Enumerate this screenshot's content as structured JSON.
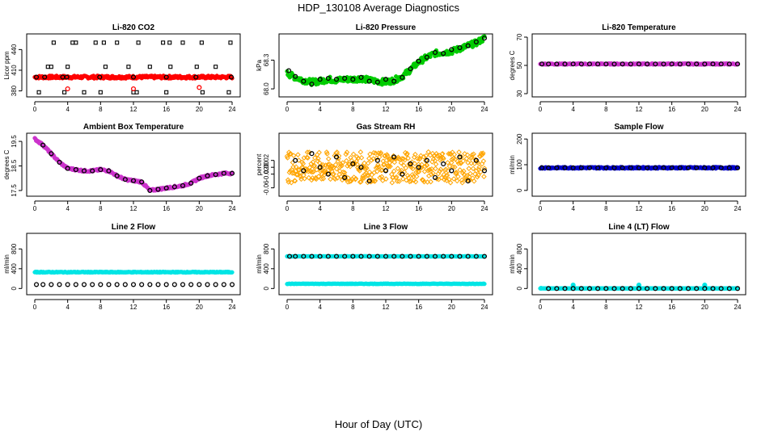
{
  "figure": {
    "title": "HDP_130108  Average Diagnostics",
    "xlabel": "Hour of Day (UTC)"
  },
  "chart_data": [
    {
      "type": "scatter",
      "title": "Li-820 CO2",
      "ylabel": "Licor ppm",
      "xlim": [
        0,
        24
      ],
      "ylim": [
        376,
        458
      ],
      "yticks": [
        380,
        410,
        440
      ],
      "xticks": [
        0,
        4,
        8,
        12,
        16,
        20,
        24
      ],
      "series": [
        {
          "color": "#ff0000",
          "fill": true,
          "style": "band",
          "x": [
            0,
            24
          ],
          "y": [
            400,
            400
          ],
          "jitter": 2
        },
        {
          "color": "#000000",
          "fill": false,
          "shape": "square",
          "x": [
            0.5,
            2,
            2.3,
            3.6,
            5,
            6,
            7.4,
            8,
            8.6,
            10,
            11.4,
            12,
            12.6,
            14,
            15.6,
            16,
            16.5,
            18,
            19.7,
            20.3,
            22,
            23.6
          ],
          "y": [
            378,
            415,
            450,
            378,
            450,
            378,
            450,
            378,
            415,
            450,
            415,
            378,
            450,
            415,
            450,
            378,
            415,
            450,
            415,
            450,
            415,
            378
          ]
        },
        {
          "color": "#000000",
          "fill": false,
          "shape": "square",
          "x": [
            1.6,
            4,
            4.6,
            8.4,
            12.4,
            16.4,
            20.4,
            23.8
          ],
          "y": [
            415,
            415,
            450,
            450,
            378,
            450,
            378,
            450
          ]
        },
        {
          "color": "#000000",
          "fill": false,
          "shape": "circle",
          "x": [
            0.2,
            1.2,
            3.4,
            3.9,
            7.9,
            12,
            16,
            19.6,
            23.9
          ],
          "y": [
            400,
            400,
            400,
            400,
            400,
            400,
            400,
            400,
            400
          ]
        },
        {
          "color": "#ff0000",
          "fill": false,
          "shape": "circle",
          "x": [
            4,
            12,
            20
          ],
          "y": [
            383,
            383,
            385
          ]
        }
      ]
    },
    {
      "type": "scatter",
      "title": "Li-820 Pressure",
      "ylabel": "kPa",
      "xlim": [
        0,
        24
      ],
      "ylim": [
        67.95,
        68.54
      ],
      "yticks": [
        68.0,
        68.3
      ],
      "ytick_labels": [
        "68.0",
        "68.3"
      ],
      "xticks": [
        0,
        4,
        8,
        12,
        16,
        20,
        24
      ],
      "series": [
        {
          "color": "#00cc00",
          "fill": true,
          "style": "band",
          "x": [
            0,
            1,
            2,
            3,
            4,
            5,
            6,
            7,
            8,
            9,
            10,
            11,
            12,
            13,
            14,
            15,
            16,
            17,
            18,
            19,
            20,
            21,
            22,
            23,
            24
          ],
          "y": [
            68.16,
            68.12,
            68.09,
            68.07,
            68.08,
            68.1,
            68.09,
            68.1,
            68.1,
            68.11,
            68.09,
            68.08,
            68.07,
            68.09,
            68.13,
            68.2,
            68.28,
            68.33,
            68.37,
            68.38,
            68.39,
            68.42,
            68.45,
            68.48,
            68.53
          ],
          "jitter": 0.03
        },
        {
          "color": "#000000",
          "fill": false,
          "shape": "circle",
          "x": [
            0.2,
            1,
            2,
            3,
            4,
            5,
            6,
            7,
            8,
            9,
            10,
            11,
            12,
            13,
            14,
            15,
            16,
            17,
            18,
            19,
            20,
            21,
            22,
            23,
            24
          ],
          "y": [
            68.19,
            68.13,
            68.08,
            68.05,
            68.1,
            68.11,
            68.1,
            68.11,
            68.1,
            68.12,
            68.08,
            68.07,
            68.1,
            68.08,
            68.12,
            68.21,
            68.29,
            68.33,
            68.38,
            68.37,
            68.41,
            68.43,
            68.45,
            68.49,
            68.53
          ]
        }
      ]
    },
    {
      "type": "scatter",
      "title": "Li-820 Temperature",
      "ylabel": "degrees C",
      "xlim": [
        0,
        24
      ],
      "ylim": [
        30,
        70
      ],
      "yticks": [
        30,
        50,
        70
      ],
      "xticks": [
        0,
        4,
        8,
        12,
        16,
        20,
        24
      ],
      "series": [
        {
          "color": "#cc33cc",
          "fill": true,
          "style": "band",
          "x": [
            0,
            24
          ],
          "y": [
            51,
            51
          ],
          "jitter": 0.4
        },
        {
          "color": "#000000",
          "fill": false,
          "shape": "circle",
          "x": [
            0.2,
            1,
            2,
            3,
            4,
            5,
            6,
            7,
            8,
            9,
            10,
            11,
            12,
            13,
            14,
            15,
            16,
            17,
            18,
            19,
            20,
            21,
            22,
            23,
            24
          ],
          "y": [
            51,
            51,
            51,
            51,
            51,
            51,
            51,
            51,
            51,
            51,
            51,
            51,
            51,
            51,
            51,
            51,
            51,
            51,
            51,
            51,
            51,
            51,
            51,
            51,
            51
          ]
        }
      ]
    },
    {
      "type": "scatter",
      "title": "Ambient Box Temperature",
      "ylabel": "degrees C",
      "xlim": [
        0,
        24
      ],
      "ylim": [
        17.4,
        19.7
      ],
      "yticks": [
        17.5,
        18.5,
        19.5
      ],
      "ytick_labels": [
        "17.5",
        "18.5",
        "19.5"
      ],
      "xticks": [
        0,
        4,
        8,
        12,
        16,
        20,
        24
      ],
      "series": [
        {
          "color": "#cc33cc",
          "fill": true,
          "style": "band",
          "x": [
            0,
            1,
            2,
            3,
            4,
            5,
            6,
            7,
            8,
            9,
            10,
            11,
            12,
            13,
            14,
            15,
            16,
            17,
            18,
            19,
            20,
            21,
            22,
            23,
            24
          ],
          "y": [
            19.6,
            19.35,
            19.0,
            18.65,
            18.4,
            18.35,
            18.3,
            18.3,
            18.35,
            18.3,
            18.1,
            17.95,
            17.9,
            17.85,
            17.5,
            17.55,
            17.6,
            17.65,
            17.7,
            17.8,
            18.0,
            18.1,
            18.15,
            18.2,
            18.2
          ],
          "jitter": 0.04
        },
        {
          "color": "#000000",
          "fill": false,
          "shape": "circle",
          "x": [
            1,
            2,
            3,
            4,
            5,
            6,
            7,
            8,
            9,
            10,
            11,
            12,
            13,
            14,
            15,
            16,
            17,
            18,
            19,
            20,
            21,
            22,
            23,
            24
          ],
          "y": [
            19.35,
            19.0,
            18.65,
            18.4,
            18.35,
            18.3,
            18.3,
            18.35,
            18.3,
            18.1,
            17.95,
            17.9,
            17.85,
            17.5,
            17.55,
            17.6,
            17.65,
            17.7,
            17.8,
            18.0,
            18.1,
            18.15,
            18.2,
            18.2
          ]
        }
      ]
    },
    {
      "type": "scatter",
      "title": "Gas Stream RH",
      "ylabel": "percent",
      "xlim": [
        0,
        24
      ],
      "ylim": [
        -0.075,
        0.09
      ],
      "yticks": [
        -0.06,
        -0.02,
        0.02
      ],
      "extra_yticks": [
        0.0
      ],
      "ytick_labels": [
        "-0.06",
        "-0.02",
        "0.02",
        "0.00"
      ],
      "xticks": [
        0,
        4,
        8,
        12,
        16,
        20,
        24
      ],
      "series": [
        {
          "color": "#ffa500",
          "fill": false,
          "shape": "diamond",
          "style": "cloud",
          "x": [
            0,
            24
          ],
          "y": [
            0.0,
            0.0
          ],
          "jitter": 0.045
        },
        {
          "color": "#000000",
          "fill": false,
          "shape": "circle",
          "x": [
            1,
            2,
            3,
            4,
            5,
            6,
            7,
            8,
            9,
            10,
            11,
            12,
            13,
            14,
            15,
            16,
            17,
            18,
            19,
            20,
            21,
            22,
            23,
            24
          ],
          "y": [
            0.02,
            -0.01,
            0.04,
            0.0,
            -0.02,
            0.03,
            -0.03,
            0.01,
            0.0,
            -0.04,
            0.02,
            -0.01,
            0.03,
            -0.02,
            0.01,
            0.0,
            0.02,
            -0.03,
            0.01,
            -0.01,
            0.03,
            -0.04,
            0.02,
            -0.01
          ]
        }
      ]
    },
    {
      "type": "scatter",
      "title": "Sample Flow",
      "ylabel": "ml/min",
      "xlim": [
        0,
        24
      ],
      "ylim": [
        -10,
        210
      ],
      "yticks": [
        0,
        100,
        200
      ],
      "xticks": [
        0,
        4,
        8,
        12,
        16,
        20,
        24
      ],
      "series": [
        {
          "color": "#0000cc",
          "fill": true,
          "style": "band",
          "x": [
            0,
            24
          ],
          "y": [
            88,
            88
          ],
          "jitter": 3
        },
        {
          "color": "#000000",
          "fill": false,
          "shape": "circle",
          "x": [
            0.2,
            1,
            2,
            3,
            4,
            5,
            6,
            7,
            8,
            9,
            10,
            11,
            12,
            13,
            14,
            15,
            16,
            17,
            18,
            19,
            20,
            21,
            22,
            23,
            24
          ],
          "y": [
            88,
            88,
            88,
            88,
            88,
            88,
            88,
            88,
            88,
            88,
            88,
            88,
            88,
            88,
            88,
            88,
            88,
            88,
            88,
            88,
            88,
            88,
            88,
            88,
            88
          ]
        }
      ]
    },
    {
      "type": "scatter",
      "title": "Line 2 Flow",
      "ylabel": "ml/min",
      "xlim": [
        0,
        24
      ],
      "ylim": [
        -60,
        1050
      ],
      "yticks": [
        0,
        400,
        800
      ],
      "xticks": [
        0,
        4,
        8,
        12,
        16,
        20,
        24
      ],
      "series": [
        {
          "color": "#00e5e5",
          "fill": true,
          "style": "band",
          "x": [
            0,
            24
          ],
          "y": [
            330,
            330
          ],
          "jitter": 8
        },
        {
          "color": "#000000",
          "fill": false,
          "shape": "circle",
          "x": [
            0.2,
            1,
            2,
            3,
            4,
            5,
            6,
            7,
            8,
            9,
            10,
            11,
            12,
            13,
            14,
            15,
            16,
            17,
            18,
            19,
            20,
            21,
            22,
            23,
            24
          ],
          "y": [
            80,
            80,
            80,
            80,
            80,
            80,
            80,
            80,
            80,
            80,
            80,
            80,
            80,
            80,
            80,
            80,
            80,
            80,
            80,
            80,
            80,
            80,
            80,
            80,
            80
          ]
        }
      ]
    },
    {
      "type": "scatter",
      "title": "Line 3 Flow",
      "ylabel": "ml/min",
      "xlim": [
        0,
        24
      ],
      "ylim": [
        -60,
        1050
      ],
      "yticks": [
        0,
        400,
        800
      ],
      "xticks": [
        0,
        4,
        8,
        12,
        16,
        20,
        24
      ],
      "series": [
        {
          "color": "#00e5e5",
          "fill": true,
          "style": "band",
          "x": [
            0,
            24
          ],
          "y": [
            95,
            95
          ],
          "jitter": 4
        },
        {
          "color": "#00e5e5",
          "fill": true,
          "style": "band",
          "x": [
            0,
            24
          ],
          "y": [
            650,
            650
          ],
          "jitter": 2
        },
        {
          "color": "#000000",
          "fill": false,
          "shape": "circle",
          "x": [
            0.3,
            1,
            2,
            3,
            4,
            5,
            6,
            7,
            8,
            9,
            10,
            11,
            12,
            13,
            14,
            15,
            16,
            17,
            18,
            19,
            20,
            21,
            22,
            23,
            24
          ],
          "y": [
            650,
            650,
            650,
            650,
            650,
            650,
            650,
            650,
            650,
            650,
            650,
            650,
            650,
            650,
            650,
            650,
            650,
            650,
            650,
            650,
            650,
            650,
            650,
            650,
            650
          ]
        }
      ]
    },
    {
      "type": "scatter",
      "title": "Line 4 (LT) Flow",
      "ylabel": "ml/min",
      "xlim": [
        0,
        24
      ],
      "ylim": [
        -60,
        1050
      ],
      "yticks": [
        0,
        400,
        800
      ],
      "xticks": [
        0,
        4,
        8,
        12,
        16,
        20,
        24
      ],
      "series": [
        {
          "color": "#00e5e5",
          "fill": true,
          "style": "band",
          "x": [
            0,
            24
          ],
          "y": [
            2,
            2
          ],
          "jitter": 2
        },
        {
          "color": "#00e5e5",
          "fill": true,
          "shape": "circle",
          "x": [
            0.1,
            4,
            12,
            20
          ],
          "y": [
            5,
            70,
            70,
            70
          ]
        },
        {
          "color": "#000000",
          "fill": false,
          "shape": "circle",
          "x": [
            1,
            2,
            3,
            4,
            5,
            6,
            7,
            8,
            9,
            10,
            11,
            12,
            13,
            14,
            15,
            16,
            17,
            18,
            19,
            20,
            21,
            22,
            23,
            24
          ],
          "y": [
            0,
            0,
            0,
            0,
            0,
            0,
            0,
            0,
            0,
            0,
            0,
            0,
            0,
            0,
            0,
            0,
            0,
            0,
            0,
            0,
            0,
            0,
            0,
            0
          ]
        }
      ]
    }
  ]
}
